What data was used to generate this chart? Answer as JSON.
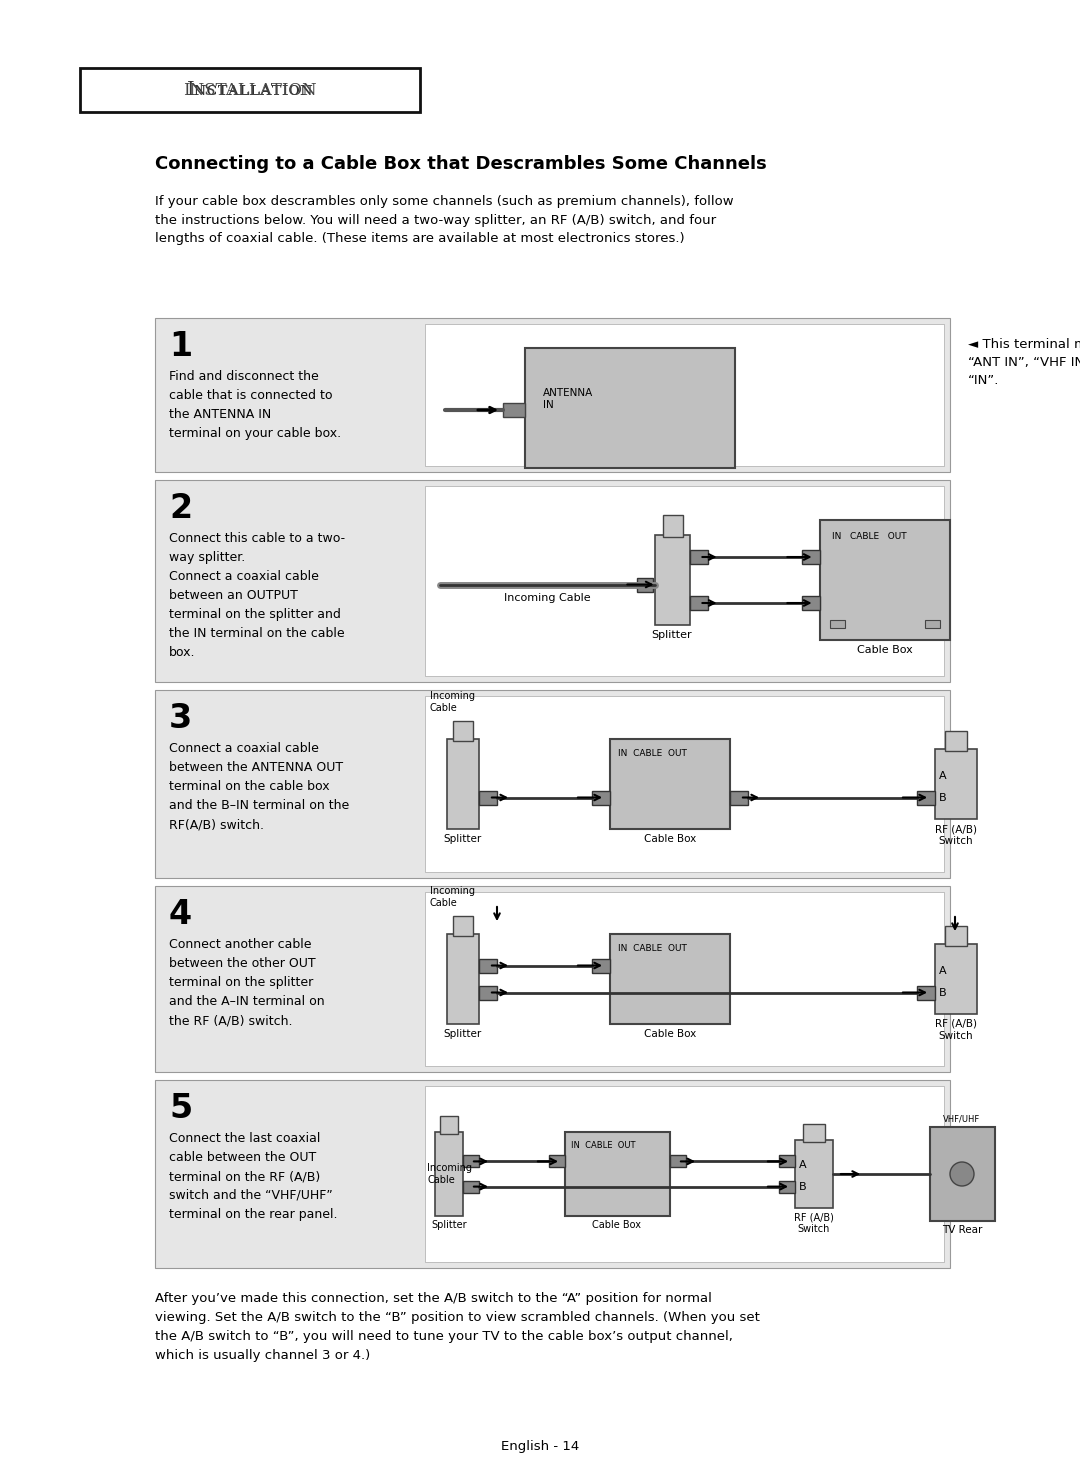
{
  "bg_color": "#ffffff",
  "header_title": "Iɴᴄᴛᴀʟʟᴀᴛɪᴏɴ",
  "header_title_plain": "INSTALLATION",
  "main_title": "Connecting to a Cable Box that Descrambles Some Channels",
  "intro_text": "If your cable box descrambles only some channels (such as premium channels), follow\nthe instructions below. You will need a two-way splitter, an RF (A/B) switch, and four\nlengths of coaxial cable. (These items are available at most electronics stores.)",
  "step1_num": "1",
  "step1_text": "Find and disconnect the\ncable that is connected to\nthe ANTENNA IN\nterminal on your cable box.",
  "step1_note": "◄ This terminal might be labelled\n“ANT IN”, “VHF IN” or simply,\n“IN”.",
  "step2_num": "2",
  "step2_text": "Connect this cable to a two-\nway splitter.\nConnect a coaxial cable\nbetween an OUTPUT\nterminal on the splitter and\nthe IN terminal on the cable\nbox.",
  "step3_num": "3",
  "step3_text": "Connect a coaxial cable\nbetween the ANTENNA OUT\nterminal on the cable box\nand the B–IN terminal on the\nRF(A/B) switch.",
  "step4_num": "4",
  "step4_text": "Connect another cable\nbetween the other OUT\nterminal on the splitter\nand the A–IN terminal on\nthe RF (A/B) switch.",
  "step5_num": "5",
  "step5_text": "Connect the last coaxial\ncable between the OUT\nterminal on the RF (A/B)\nswitch and the “VHF/UHF”\nterminal on the rear panel.",
  "footer_note": "After you’ve made this connection, set the A/B switch to the “A” position for normal\nviewing. Set the A/B switch to the “B” position to view scrambled channels. (When you set\nthe A/B switch to “B”, you will need to tune your TV to the cable box’s output channel,\nwhich is usually channel 3 or 4.)",
  "page_number": "English - 14",
  "step_bg": "#e6e6e6",
  "diagram_bg": "#ffffff",
  "text_color": "#000000"
}
